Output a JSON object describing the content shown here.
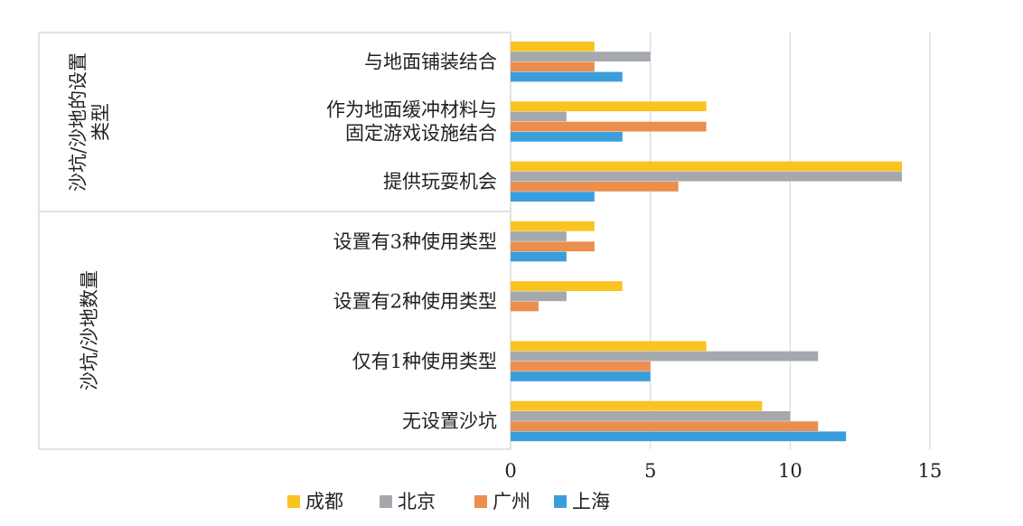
{
  "chart_data": {
    "type": "bar",
    "orientation": "horizontal",
    "title": "",
    "xlabel": "",
    "ylabel": "",
    "xlim": [
      0,
      15
    ],
    "xticks": [
      0,
      5,
      10,
      15
    ],
    "grid": "vertical",
    "legend_position": "bottom",
    "groups": [
      {
        "label": "沙坑/沙地的设置类型",
        "lines": [
          "沙坑/沙地的设置",
          "类型"
        ],
        "categories": [
          0,
          1,
          2
        ]
      },
      {
        "label": "沙坑/沙地数量",
        "lines": [
          "沙坑/沙地数量"
        ],
        "categories": [
          3,
          4,
          5,
          6
        ]
      }
    ],
    "categories": [
      {
        "label": "与地面铺装结合",
        "lines": [
          "与地面铺装结合"
        ]
      },
      {
        "label": "作为地面缓冲材料与固定游戏设施结合",
        "lines": [
          "作为地面缓冲材料与",
          "固定游戏设施结合"
        ]
      },
      {
        "label": "提供玩耍机会",
        "lines": [
          "提供玩耍机会"
        ]
      },
      {
        "label": "设置有3种使用类型",
        "lines": [
          "设置有3种使用类型"
        ]
      },
      {
        "label": "设置有2种使用类型",
        "lines": [
          "设置有2种使用类型"
        ]
      },
      {
        "label": "仅有1种使用类型",
        "lines": [
          "仅有1种使用类型"
        ]
      },
      {
        "label": "无设置沙坑",
        "lines": [
          "无设置沙坑"
        ]
      }
    ],
    "series": [
      {
        "name": "成都",
        "color": "#F9C320",
        "values": [
          3,
          7,
          14,
          3,
          4,
          7,
          9
        ]
      },
      {
        "name": "北京",
        "color": "#A5A9AE",
        "values": [
          5,
          2,
          14,
          2,
          2,
          11,
          10
        ]
      },
      {
        "name": "广州",
        "color": "#EB8E4E",
        "values": [
          3,
          7,
          6,
          3,
          1,
          5,
          11
        ]
      },
      {
        "name": "上海",
        "color": "#3B9EDC",
        "values": [
          4,
          4,
          3,
          2,
          0,
          5,
          12
        ]
      }
    ]
  }
}
